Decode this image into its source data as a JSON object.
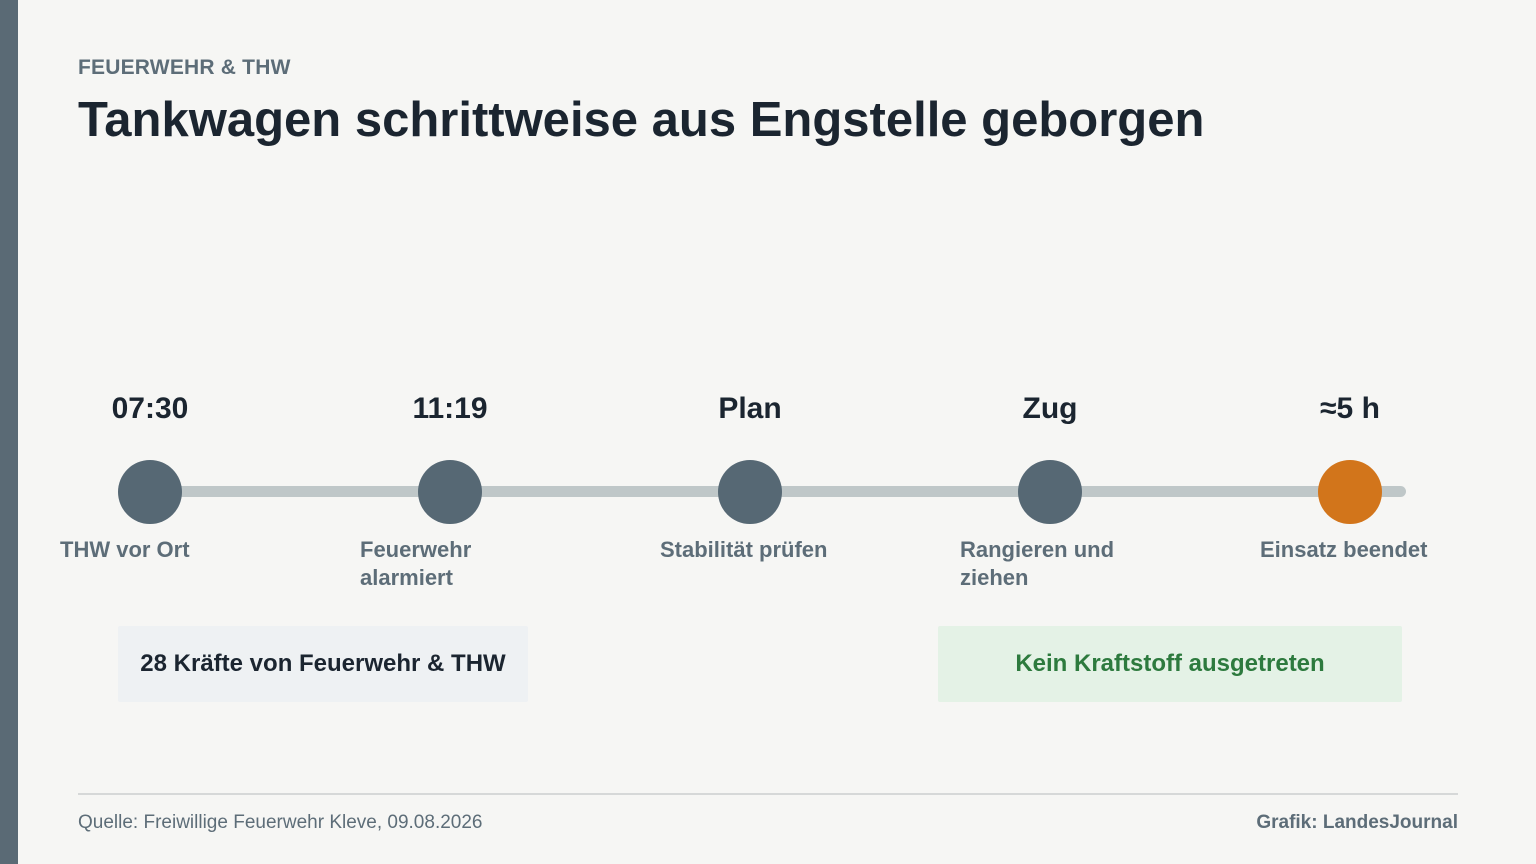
{
  "header": {
    "kicker": "FEUERWEHR & THW",
    "title": "Tankwagen schrittweise aus Engstelle geborgen"
  },
  "timeline": {
    "steps": [
      {
        "top": "07:30",
        "label": "THW vor Ort",
        "state": "done"
      },
      {
        "top": "11:19",
        "label": "Feuerwehr alarmiert",
        "state": "done"
      },
      {
        "top": "Plan",
        "label": "Stabilität prüfen",
        "state": "done"
      },
      {
        "top": "Zug",
        "label": "Rangieren und ziehen",
        "state": "done"
      },
      {
        "top": "≈5 h",
        "label": "Einsatz beendet",
        "state": "final"
      }
    ]
  },
  "notes": {
    "left": "28 Kräfte von Feuerwehr & THW",
    "right": "Kein Kraftstoff ausgetreten"
  },
  "footer": {
    "source": "Quelle: Freiwillige Feuerwehr Kleve, 09.08.2026",
    "credit": "Grafik: LandesJournal"
  },
  "colors": {
    "dot": "#566874",
    "final_dot": "#d2751b",
    "track": "#bfc7c8",
    "accent_bar": "#5a6a75",
    "positive_note_text": "#2d7a3e"
  }
}
